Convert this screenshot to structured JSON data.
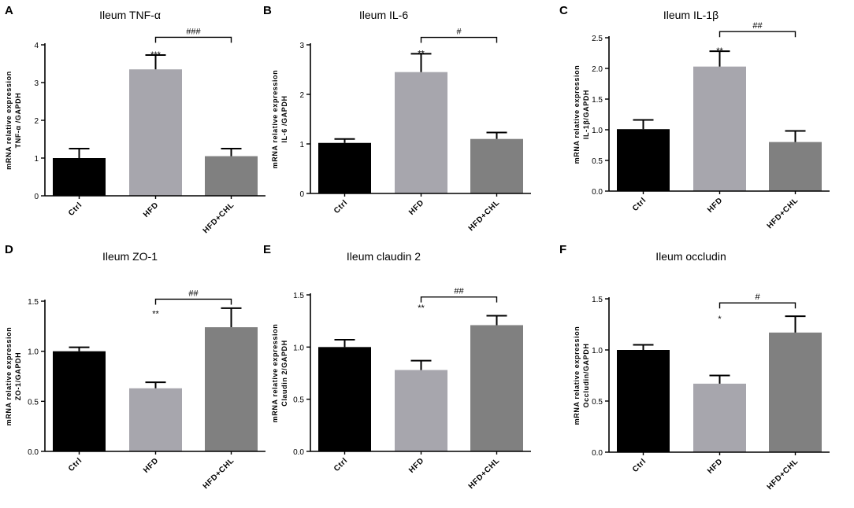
{
  "figure": {
    "x_categories": [
      "Ctrl",
      "HFD",
      "HFD+CHL"
    ],
    "ylabel_main": "mRNA relative expression",
    "colors": {
      "Ctrl": "#000000",
      "HFD": "#a7a6ad",
      "HFD+CHL": "#808080"
    }
  },
  "chart_data": [
    {
      "type": "bar",
      "letter": "A",
      "title": "Ileum TNF-α",
      "ylabel_gene": "TNF-α /GAPDH",
      "categories": [
        "Ctrl",
        "HFD",
        "HFD+CHL"
      ],
      "values": [
        1.0,
        3.35,
        1.05
      ],
      "errors": [
        0.25,
        0.38,
        0.2
      ],
      "ylim": [
        0,
        4
      ],
      "yticks": [
        "0",
        "1",
        "2",
        "3",
        "4"
      ],
      "ytick_values": [
        0,
        1,
        2,
        3,
        4
      ],
      "star": {
        "label": "***",
        "index": 1
      },
      "bracket": {
        "label": "###",
        "from": 1,
        "to": 2,
        "value": 4.2
      }
    },
    {
      "type": "bar",
      "letter": "B",
      "title": "Ileum IL-6",
      "ylabel_gene": "IL-6 /GAPDH",
      "categories": [
        "Ctrl",
        "HFD",
        "HFD+CHL"
      ],
      "values": [
        1.02,
        2.45,
        1.1
      ],
      "errors": [
        0.08,
        0.37,
        0.13
      ],
      "ylim": [
        0,
        3
      ],
      "yticks": [
        "0",
        "1",
        "2",
        "3"
      ],
      "ytick_values": [
        0,
        1,
        2,
        3
      ],
      "star": {
        "label": "**",
        "index": 1
      },
      "bracket": {
        "label": "#",
        "from": 1,
        "to": 2,
        "value": 3.15
      }
    },
    {
      "type": "bar",
      "letter": "C",
      "title": "Ileum IL-1β",
      "ylabel_gene": "IL-1β/GAPDH",
      "categories": [
        "Ctrl",
        "HFD",
        "HFD+CHL"
      ],
      "values": [
        1.01,
        2.03,
        0.8
      ],
      "errors": [
        0.15,
        0.25,
        0.18
      ],
      "ylim": [
        0,
        2.5
      ],
      "yticks": [
        "0.0",
        "0.5",
        "1.0",
        "1.5",
        "2.0",
        "2.5"
      ],
      "ytick_values": [
        0,
        0.5,
        1.0,
        1.5,
        2.0,
        2.5
      ],
      "star": {
        "label": "**",
        "index": 1
      },
      "bracket": {
        "label": "##",
        "from": 1,
        "to": 2,
        "value": 2.6
      }
    },
    {
      "type": "bar",
      "letter": "D",
      "title": "Ileum ZO-1",
      "ylabel_gene": "ZO-1/GAPDH",
      "categories": [
        "Ctrl",
        "HFD",
        "HFD+CHL"
      ],
      "values": [
        1.0,
        0.63,
        1.24
      ],
      "errors": [
        0.04,
        0.06,
        0.19
      ],
      "ylim": [
        0,
        1.5
      ],
      "yticks": [
        "0.0",
        "0.5",
        "1.0",
        "1.5"
      ],
      "ytick_values": [
        0,
        0.5,
        1.0,
        1.5
      ],
      "star": {
        "label": "**",
        "index": 1,
        "value": 1.37
      },
      "bracket": {
        "label": "##",
        "from": 1,
        "to": 2,
        "value": 1.52
      }
    },
    {
      "type": "bar",
      "letter": "E",
      "title": "Ileum claudin 2",
      "ylabel_gene": "Claudin 2/GAPDH",
      "categories": [
        "Ctrl",
        "HFD",
        "HFD+CHL"
      ],
      "values": [
        1.0,
        0.78,
        1.21
      ],
      "errors": [
        0.07,
        0.09,
        0.09
      ],
      "ylim": [
        0,
        1.5
      ],
      "yticks": [
        "0.0",
        "0.5",
        "1.0",
        "1.5"
      ],
      "ytick_values": [
        0,
        0.5,
        1.0,
        1.5
      ],
      "star": {
        "label": "**",
        "index": 1,
        "value": 1.37
      },
      "bracket": {
        "label": "##",
        "from": 1,
        "to": 2,
        "value": 1.48
      }
    },
    {
      "type": "bar",
      "letter": "F",
      "title": "Ileum occludin",
      "ylabel_gene": "Occludin/GAPDH",
      "categories": [
        "Ctrl",
        "HFD",
        "HFD+CHL"
      ],
      "values": [
        1.0,
        0.67,
        1.17
      ],
      "errors": [
        0.05,
        0.08,
        0.16
      ],
      "ylim": [
        0,
        1.5
      ],
      "yticks": [
        "0.0",
        "0.5",
        "1.0",
        "1.5"
      ],
      "ytick_values": [
        0,
        0.5,
        1.0,
        1.5
      ],
      "star": {
        "label": "*",
        "index": 1,
        "value": 1.3
      },
      "bracket": {
        "label": "#",
        "from": 1,
        "to": 2,
        "value": 1.46
      }
    }
  ]
}
